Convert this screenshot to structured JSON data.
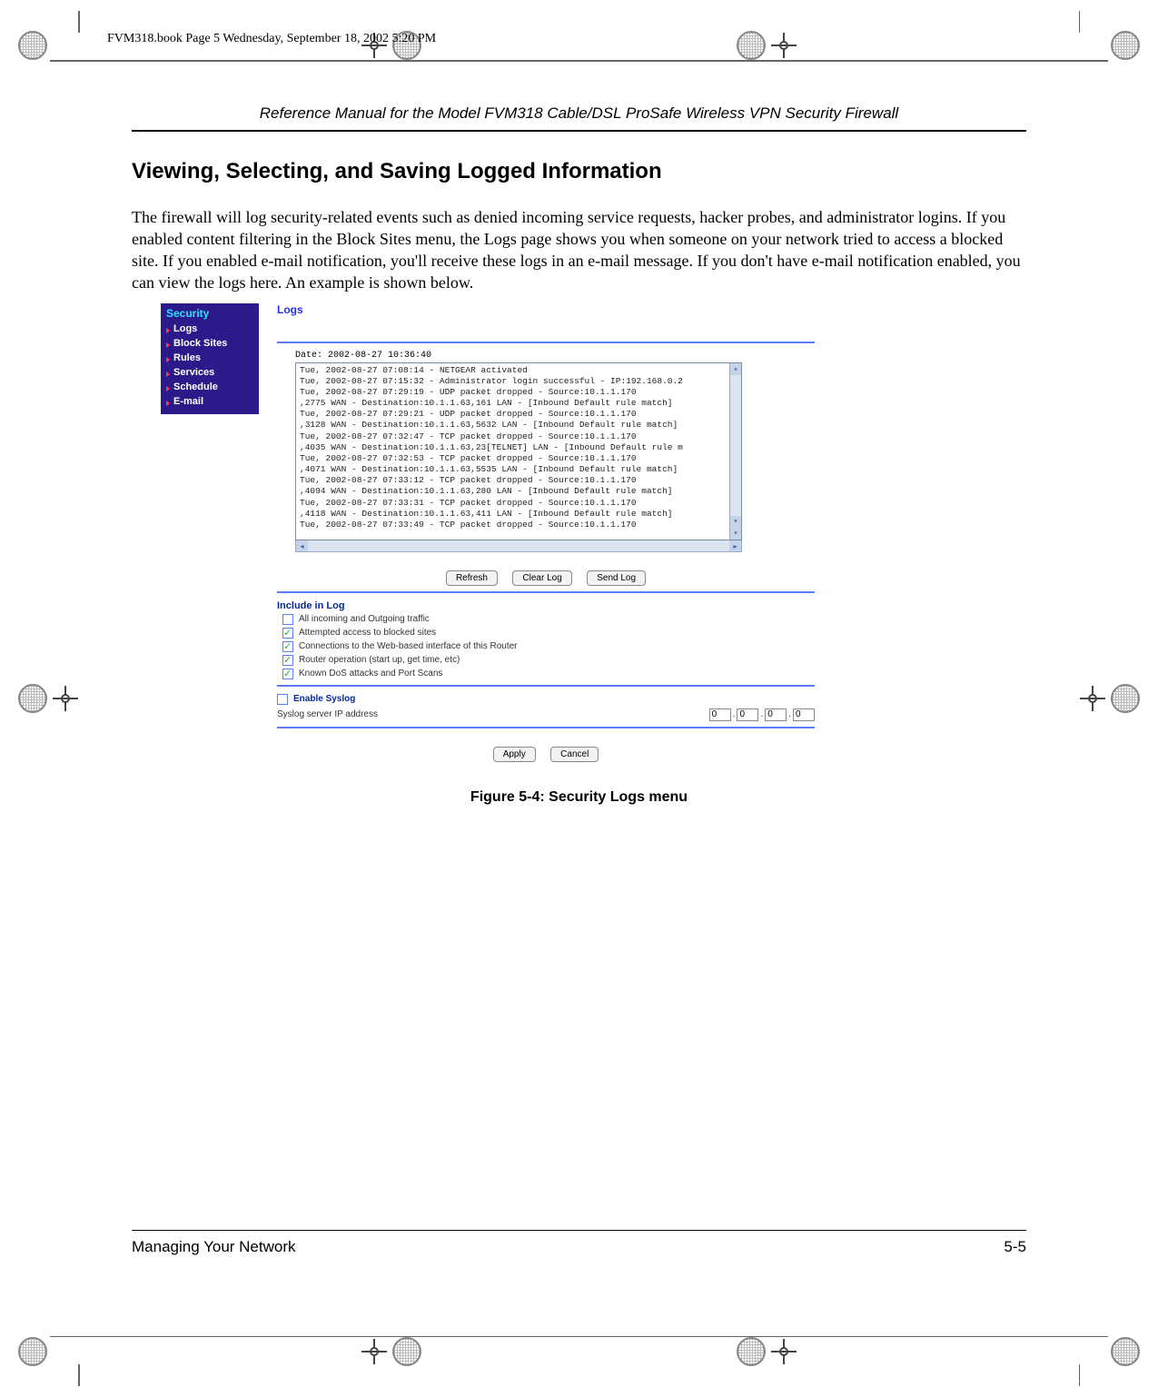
{
  "crop": {
    "color": "#666666"
  },
  "book_line": "FVM318.book  Page 5  Wednesday, September 18, 2002  5:20 PM",
  "running_header": "Reference Manual for the Model FVM318 Cable/DSL ProSafe Wireless VPN Security Firewall",
  "section_title": "Viewing, Selecting, and Saving Logged Information",
  "body": "The firewall will log security-related events such as denied incoming service requests, hacker probes, and administrator logins. If you enabled content filtering in the Block Sites menu, the Logs page shows you when someone on your network tried to access a blocked site. If you enabled e-mail notification, you'll receive these logs in an e-mail message. If you don't have e-mail notification enabled, you can view the logs here. An example is shown below.",
  "sidebar": {
    "header": "Security",
    "header_color": "#2de0ff",
    "bg_color": "#2b1b8a",
    "items": [
      "Logs",
      "Block Sites",
      "Rules",
      "Services",
      "Schedule",
      "E-mail"
    ]
  },
  "panel": {
    "title": "Logs",
    "title_color": "#2030ff",
    "rule_color": "#5a7bff",
    "date_line": "Date: 2002-08-27 10:36:40",
    "log_lines": [
      "Tue, 2002-08-27 07:08:14 - NETGEAR activated",
      "Tue, 2002-08-27 07:15:32 - Administrator login successful - IP:192.168.0.2",
      "Tue, 2002-08-27 07:29:19 - UDP packet dropped - Source:10.1.1.170",
      ",2775 WAN - Destination:10.1.1.63,161 LAN - [Inbound Default rule match]",
      "Tue, 2002-08-27 07:29:21 - UDP packet dropped - Source:10.1.1.170",
      ",3128 WAN - Destination:10.1.1.63,5632 LAN - [Inbound Default rule match]",
      "Tue, 2002-08-27 07:32:47 - TCP packet dropped - Source:10.1.1.170",
      ",4035 WAN - Destination:10.1.1.63,23[TELNET] LAN - [Inbound Default rule m",
      "Tue, 2002-08-27 07:32:53 - TCP packet dropped - Source:10.1.1.170",
      ",4071 WAN - Destination:10.1.1.63,5535 LAN - [Inbound Default rule match]",
      "Tue, 2002-08-27 07:33:12 - TCP packet dropped - Source:10.1.1.170",
      ",4094 WAN - Destination:10.1.1.63,280 LAN - [Inbound Default rule match]",
      "Tue, 2002-08-27 07:33:31 - TCP packet dropped - Source:10.1.1.170",
      ",4118 WAN - Destination:10.1.1.63,411 LAN - [Inbound Default rule match]",
      "Tue, 2002-08-27 07:33:49 - TCP packet dropped - Source:10.1.1.170"
    ],
    "buttons_top": [
      "Refresh",
      "Clear Log",
      "Send Log"
    ],
    "include_header": "Include in Log",
    "checks": [
      {
        "label": "All incoming and Outgoing traffic",
        "checked": false
      },
      {
        "label": "Attempted access to blocked sites",
        "checked": true
      },
      {
        "label": "Connections to the Web-based interface of this Router",
        "checked": true
      },
      {
        "label": "Router operation (start up, get time, etc)",
        "checked": true
      },
      {
        "label": "Known DoS attacks and Port Scans",
        "checked": true
      }
    ],
    "syslog": {
      "enable_label": "Enable Syslog",
      "enable_checked": false,
      "addr_label": "Syslog server IP address",
      "ip": [
        "0",
        "0",
        "0",
        "0"
      ]
    },
    "buttons_bottom": [
      "Apply",
      "Cancel"
    ]
  },
  "figure_caption": "Figure 5-4: Security Logs menu",
  "footer": {
    "left": "Managing Your Network",
    "right": "5-5"
  }
}
